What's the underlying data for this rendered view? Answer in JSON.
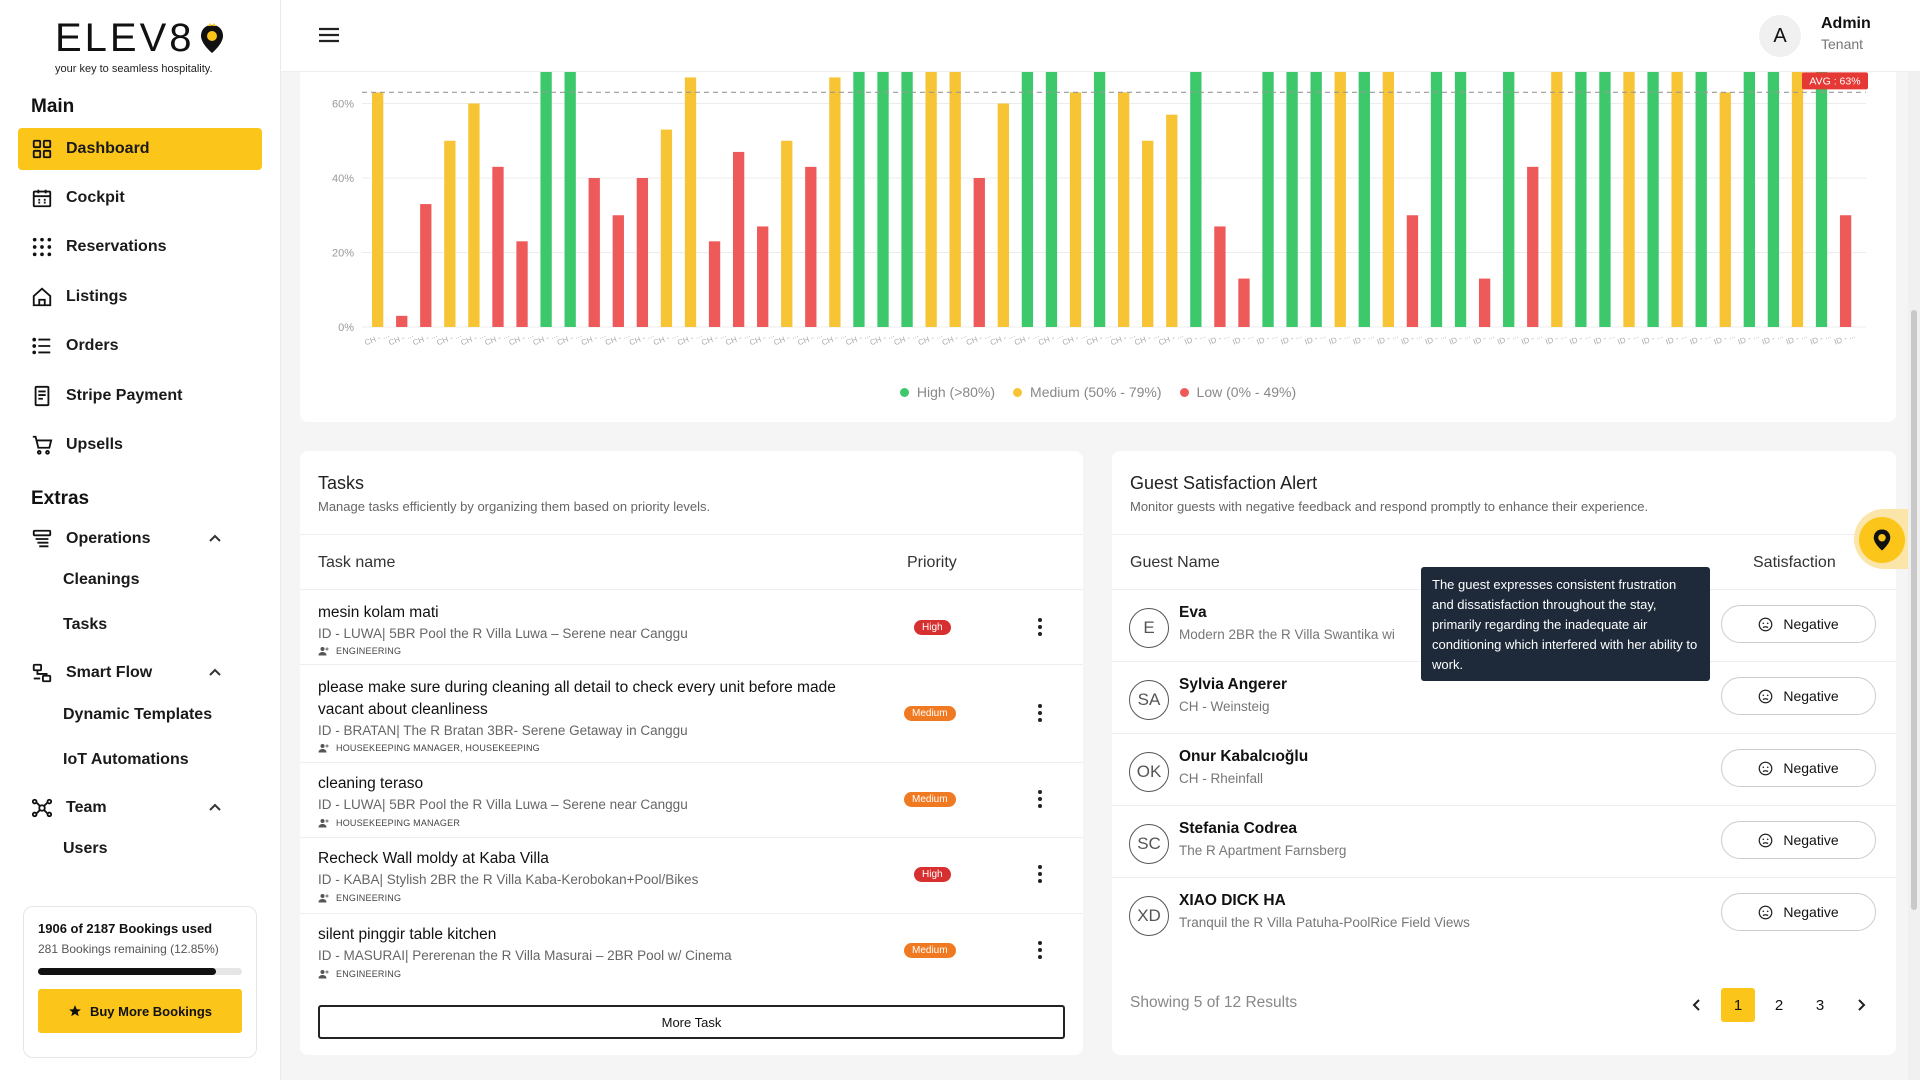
{
  "brand": {
    "name": "ELEV8",
    "tagline": "your key to seamless hospitality."
  },
  "sidebar": {
    "main_title": "Main",
    "main_items": [
      {
        "label": "Dashboard",
        "icon": "grid-icon",
        "active": true
      },
      {
        "label": "Cockpit",
        "icon": "calendar-icon"
      },
      {
        "label": "Reservations",
        "icon": "dots-grid-icon"
      },
      {
        "label": "Listings",
        "icon": "home-icon"
      },
      {
        "label": "Orders",
        "icon": "list-icon"
      },
      {
        "label": "Stripe Payment",
        "icon": "receipt-icon"
      },
      {
        "label": "Upsells",
        "icon": "cart-icon"
      }
    ],
    "extras_title": "Extras",
    "groups": [
      {
        "label": "Operations",
        "icon": "operations-icon",
        "children": [
          "Cleanings",
          "Tasks"
        ]
      },
      {
        "label": "Smart Flow",
        "icon": "flow-icon",
        "children": [
          "Dynamic Templates",
          "IoT Automations"
        ]
      },
      {
        "label": "Team",
        "icon": "team-icon",
        "children": [
          "Users"
        ]
      }
    ],
    "usage": {
      "title": "1906 of 2187 Bookings used",
      "remaining": "281 Bookings remaining (12.85%)",
      "used_fraction": 0.8715,
      "button": "Buy More Bookings"
    }
  },
  "header": {
    "avatar_letter": "A",
    "user_name": "Admin",
    "user_role": "Tenant"
  },
  "chart_data": {
    "type": "bar",
    "y_ticks": [
      "0%",
      "20%",
      "40%",
      "60%"
    ],
    "ylim": [
      0,
      63
    ],
    "average_label": "AVG : 63%",
    "average": 63,
    "category_prefixes": [
      "CH",
      "CH",
      "CH",
      "CH",
      "CH",
      "CH",
      "CH",
      "CH",
      "CH",
      "CH",
      "CH",
      "CH",
      "CH",
      "CH",
      "CH",
      "CH",
      "CH",
      "CH",
      "CH",
      "CH",
      "CH",
      "CH",
      "CH",
      "CH",
      "CH",
      "CH",
      "CH",
      "CH",
      "CH",
      "CH",
      "CH",
      "CH",
      "CH",
      "CH",
      "ID",
      "ID",
      "ID",
      "ID",
      "ID",
      "ID",
      "ID",
      "ID",
      "ID",
      "ID",
      "ID",
      "ID",
      "ID",
      "ID",
      "ID",
      "ID",
      "ID",
      "ID",
      "ID",
      "ID",
      "ID",
      "ID",
      "ID",
      "ID",
      "ID",
      "ID",
      "ID",
      "ID"
    ],
    "values": [
      63,
      3,
      33,
      50,
      60,
      43,
      23,
      70,
      70,
      40,
      30,
      40,
      53,
      67,
      23,
      47,
      27,
      50,
      43,
      67,
      70,
      70,
      70,
      70,
      70,
      40,
      60,
      70,
      70,
      63,
      70,
      63,
      50,
      57,
      70,
      27,
      13,
      70,
      70,
      70,
      70,
      70,
      70,
      30,
      70,
      70,
      13,
      70,
      43,
      70,
      70,
      70,
      70,
      70,
      70,
      70,
      63,
      70,
      70,
      70,
      70,
      30
    ],
    "colors_by_level": {
      "high": "#3cc86b",
      "medium": "#f6c435",
      "low": "#ee5a5a"
    },
    "levels": [
      "medium",
      "low",
      "low",
      "medium",
      "medium",
      "low",
      "low",
      "high",
      "high",
      "low",
      "low",
      "low",
      "medium",
      "medium",
      "low",
      "low",
      "low",
      "medium",
      "low",
      "medium",
      "high",
      "high",
      "high",
      "medium",
      "medium",
      "low",
      "medium",
      "high",
      "high",
      "medium",
      "high",
      "medium",
      "medium",
      "medium",
      "high",
      "low",
      "low",
      "high",
      "high",
      "high",
      "medium",
      "high",
      "medium",
      "low",
      "high",
      "high",
      "low",
      "high",
      "low",
      "medium",
      "high",
      "high",
      "medium",
      "high",
      "medium",
      "high",
      "medium",
      "high",
      "high",
      "medium",
      "high",
      "low"
    ],
    "legend": [
      {
        "label": "High (>80%)",
        "color": "#3cc86b"
      },
      {
        "label": "Medium (50% - 79%)",
        "color": "#f6c435"
      },
      {
        "label": "Low (0% - 49%)",
        "color": "#ee5a5a"
      }
    ]
  },
  "tasks": {
    "title": "Tasks",
    "subtitle": "Manage tasks efficiently by organizing them based on priority levels.",
    "col_name": "Task name",
    "col_priority": "Priority",
    "rows": [
      {
        "name": "mesin kolam mati",
        "id": "ID - LUWA| 5BR Pool the R Villa Luwa – Serene near Canggu",
        "role": "ENGINEERING",
        "priority": "High"
      },
      {
        "name": "please make sure during cleaning all detail to check every unit before made vacant about cleanliness",
        "id": "ID - BRATAN| The R Bratan 3BR- Serene Getaway in Canggu",
        "role": "HOUSEKEEPING MANAGER, HOUSEKEEPING",
        "priority": "Medium"
      },
      {
        "name": "cleaning teraso",
        "id": "ID - LUWA| 5BR Pool the R Villa Luwa – Serene near Canggu",
        "role": "HOUSEKEEPING MANAGER",
        "priority": "Medium"
      },
      {
        "name": "Recheck Wall moldy at Kaba Villa",
        "id": "ID - KABA| Stylish 2BR the R Villa Kaba-Kerobokan+Pool/Bikes",
        "role": "ENGINEERING",
        "priority": "High"
      },
      {
        "name": "silent pinggir table kitchen",
        "id": "ID - MASURAI| Pererenan the R Villa Masurai – 2BR Pool w/ Cinema",
        "role": "ENGINEERING",
        "priority": "Medium"
      }
    ],
    "more_button": "More Task"
  },
  "guests": {
    "title": "Guest Satisfaction Alert",
    "subtitle": "Monitor guests with negative feedback and respond promptly to enhance their experience.",
    "col_name": "Guest Name",
    "col_satisfaction": "Satisfaction",
    "rows": [
      {
        "initials": "E",
        "name": "Eva",
        "property": "Modern 2BR the R Villa Swantika wi",
        "satisfaction": "Negative"
      },
      {
        "initials": "SA",
        "name": "Sylvia Angerer",
        "property": "CH - Weinsteig",
        "satisfaction": "Negative"
      },
      {
        "initials": "OK",
        "name": "Onur Kabalcıoğlu",
        "property": "CH - Rheinfall",
        "satisfaction": "Negative"
      },
      {
        "initials": "SC",
        "name": "Stefania Codrea",
        "property": "The R Apartment Farnsberg",
        "satisfaction": "Negative"
      },
      {
        "initials": "XD",
        "name": "XIAO DICK HA",
        "property": "Tranquil the R Villa Patuha-PoolRice Field Views",
        "satisfaction": "Negative"
      }
    ],
    "tooltip": "The guest expresses consistent frustration and dissatisfaction throughout the stay, primarily regarding the inadequate air conditioning which interfered with her ability to work.",
    "showing": "Showing 5 of 12 Results",
    "pages": [
      "1",
      "2",
      "3"
    ],
    "current_page": "1"
  }
}
